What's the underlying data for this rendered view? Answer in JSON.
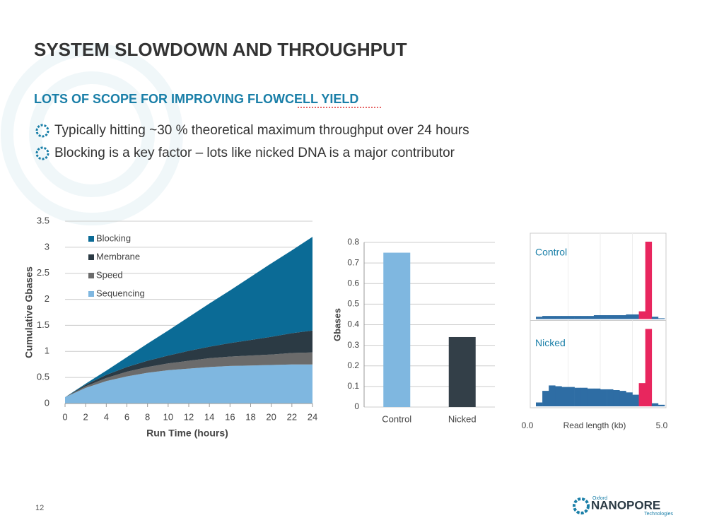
{
  "slide": {
    "title": "SYSTEM SLOWDOWN AND THROUGHPUT",
    "subtitle": "LOTS OF SCOPE FOR IMPROVING FLOWCELL YIELD",
    "bullets": [
      "Typically hitting ~30 % theoretical maximum throughput over 24 hours",
      "Blocking is a key factor – lots like nicked DNA is a major contributor"
    ],
    "page_number": "12",
    "logo": {
      "top": "Oxford",
      "name": "NANOPORE",
      "bottom": "Technologies"
    }
  },
  "chart_data": [
    {
      "type": "stacked_area",
      "xlabel": "Run Time (hours)",
      "ylabel": "Cumulative Gbases",
      "x": [
        0,
        2,
        4,
        6,
        8,
        10,
        12,
        14,
        16,
        18,
        20,
        22,
        24
      ],
      "series": [
        {
          "name": "Sequencing",
          "color": "#7fb7e0",
          "values": [
            0.12,
            0.3,
            0.43,
            0.52,
            0.59,
            0.64,
            0.67,
            0.7,
            0.72,
            0.73,
            0.74,
            0.75,
            0.75
          ]
        },
        {
          "name": "Speed",
          "color": "#6b6b6b",
          "values": [
            0,
            0.03,
            0.06,
            0.09,
            0.11,
            0.13,
            0.15,
            0.17,
            0.18,
            0.19,
            0.2,
            0.22,
            0.23
          ]
        },
        {
          "name": "Membrane",
          "color": "#2b3a44",
          "values": [
            0,
            0.03,
            0.06,
            0.09,
            0.12,
            0.15,
            0.19,
            0.22,
            0.26,
            0.3,
            0.34,
            0.38,
            0.42
          ]
        },
        {
          "name": "Blocking",
          "color": "#0b6b96",
          "values": [
            0,
            0.02,
            0.08,
            0.19,
            0.33,
            0.48,
            0.65,
            0.83,
            1.01,
            1.21,
            1.41,
            1.59,
            1.8
          ]
        }
      ],
      "xlim": [
        0,
        24
      ],
      "xticks": [
        0,
        2,
        4,
        6,
        8,
        10,
        12,
        14,
        16,
        18,
        20,
        22,
        24
      ],
      "ylim": [
        0,
        3.5
      ],
      "yticks": [
        0,
        0.5,
        1,
        1.5,
        2,
        2.5,
        3,
        3.5
      ],
      "grid": true
    },
    {
      "type": "bar",
      "ylabel": "Gbases",
      "categories": [
        "Control",
        "Nicked"
      ],
      "values": [
        0.75,
        0.34
      ],
      "colors": [
        "#7fb7e0",
        "#333f48"
      ],
      "ylim": [
        0,
        0.8
      ],
      "yticks": [
        0,
        0.1,
        0.2,
        0.3,
        0.4,
        0.5,
        0.6,
        0.7,
        0.8
      ],
      "grid": true
    },
    {
      "type": "histogram",
      "xlabel": "Read length (kb)",
      "bins": [
        0,
        0.25,
        0.5,
        0.75,
        1,
        1.25,
        1.5,
        1.75,
        2,
        2.25,
        2.5,
        2.75,
        3,
        3.25,
        3.5,
        3.75,
        4,
        4.25,
        4.5,
        4.75,
        5
      ],
      "panels": [
        {
          "name": "Control",
          "values": [
            0.03,
            0.04,
            0.04,
            0.04,
            0.04,
            0.04,
            0.04,
            0.04,
            0.04,
            0.05,
            0.05,
            0.05,
            0.05,
            0.05,
            0.06,
            0.06,
            0.1,
            1.0,
            0.03,
            0.01
          ]
        },
        {
          "name": "Nicked",
          "values": [
            0.05,
            0.2,
            0.27,
            0.26,
            0.25,
            0.25,
            0.24,
            0.24,
            0.23,
            0.23,
            0.22,
            0.22,
            0.21,
            0.2,
            0.18,
            0.15,
            0.3,
            1.0,
            0.04,
            0.02
          ]
        }
      ],
      "color": "#2e6da4",
      "highlight_color": "#e8265e",
      "highlight_range": [
        4,
        4.5
      ],
      "xlim": [
        0,
        5
      ],
      "xticks": [
        {
          "value": 0,
          "label": "0.0"
        },
        {
          "value": 5,
          "label": "5.0"
        }
      ],
      "ylim": [
        0,
        1
      ]
    }
  ]
}
